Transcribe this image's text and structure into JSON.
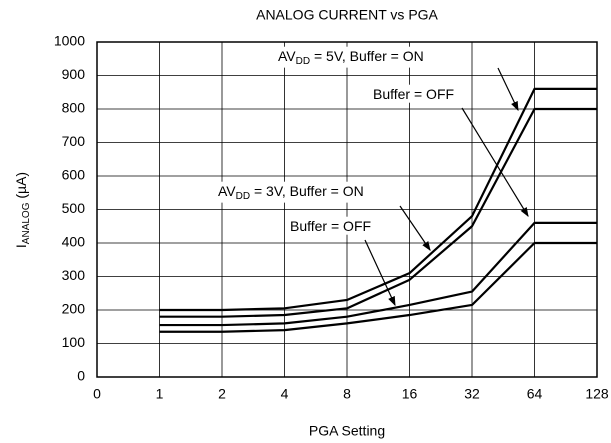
{
  "chart_data": {
    "type": "line",
    "title": "ANALOG CURRENT vs PGA",
    "x_label": "PGA Setting",
    "y_label": {
      "main": "I",
      "sub": "ANALOG",
      "rest": " (µA)"
    },
    "categories": [
      "0",
      "1",
      "2",
      "4",
      "8",
      "16",
      "32",
      "64",
      "128"
    ],
    "series": [
      {
        "color": "#000000",
        "values": [
          null,
          200,
          200,
          205,
          230,
          310,
          480,
          860,
          860
        ]
      },
      {
        "color": "#000000",
        "values": [
          null,
          180,
          180,
          185,
          205,
          290,
          450,
          800,
          800
        ]
      },
      {
        "color": "#000000",
        "values": [
          null,
          155,
          155,
          160,
          180,
          215,
          255,
          460,
          460
        ]
      },
      {
        "color": "#000000",
        "values": [
          null,
          135,
          135,
          140,
          160,
          185,
          215,
          400,
          400
        ]
      }
    ],
    "annotations": [
      {
        "main": "AV",
        "sub": "DD",
        "rest": " = 5V, Buffer = ON"
      },
      {
        "main": "Buffer = OFF"
      },
      {
        "main": "AV",
        "sub": "DD",
        "rest": " = 3V, Buffer = ON"
      },
      {
        "main": "Buffer = OFF"
      }
    ],
    "ylim": [
      0,
      1000
    ],
    "yticks": [
      0,
      100,
      200,
      300,
      400,
      500,
      600,
      700,
      800,
      900,
      1000
    ],
    "grid": true
  }
}
